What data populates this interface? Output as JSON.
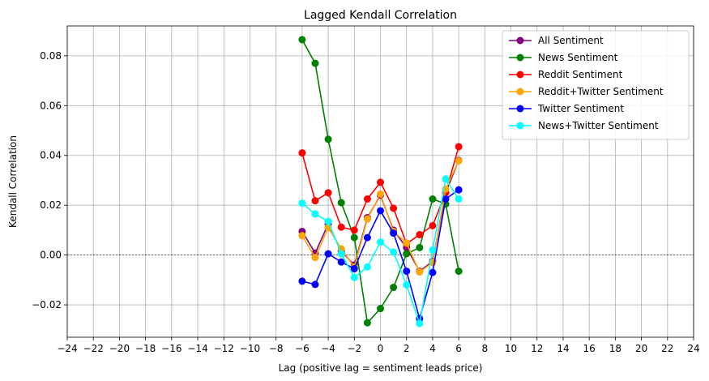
{
  "chart_data": {
    "type": "line",
    "title": "Lagged Kendall Correlation",
    "xlabel": "Lag (positive lag = sentiment leads price)",
    "ylabel": "Kendall Correlation",
    "xlim": [
      -24,
      24
    ],
    "ylim": [
      -0.033,
      0.092
    ],
    "xticks": [
      -24,
      -22,
      -20,
      -18,
      -16,
      -14,
      -12,
      -10,
      -8,
      -6,
      -4,
      -2,
      0,
      2,
      4,
      6,
      8,
      10,
      12,
      14,
      16,
      18,
      20,
      22,
      24
    ],
    "xtick_labels": [
      "−24",
      "−22",
      "−20",
      "−18",
      "−16",
      "−14",
      "−12",
      "−10",
      "−8",
      "−6",
      "−4",
      "−2",
      "0",
      "2",
      "4",
      "6",
      "8",
      "10",
      "12",
      "14",
      "16",
      "18",
      "20",
      "22",
      "24"
    ],
    "yticks": [
      -0.02,
      0.0,
      0.02,
      0.04,
      0.06,
      0.08
    ],
    "ytick_labels": [
      "−0.02",
      "0.00",
      "0.02",
      "0.04",
      "0.06",
      "0.08"
    ],
    "grid": true,
    "zero_line": true,
    "legend_position": "top-right",
    "x": [
      -6,
      -5,
      -4,
      -3,
      -2,
      -1,
      0,
      1,
      2,
      3,
      4,
      5,
      6
    ],
    "series": [
      {
        "name": "All Sentiment",
        "color": "#800080",
        "values": [
          0.0095,
          0.0008,
          0.0125,
          0.0015,
          -0.004,
          0.015,
          0.024,
          0.01,
          0.003,
          -0.0065,
          -0.0025,
          0.025,
          0.038
        ]
      },
      {
        "name": "News Sentiment",
        "color": "#008000",
        "values": [
          0.0865,
          0.077,
          0.0465,
          0.021,
          0.007,
          -0.0272,
          -0.0215,
          -0.013,
          0.0005,
          0.003,
          0.0225,
          0.0205,
          -0.0065
        ]
      },
      {
        "name": "Reddit Sentiment",
        "color": "#ff0000",
        "values": [
          0.041,
          0.0218,
          0.025,
          0.0112,
          0.01,
          0.0225,
          0.0292,
          0.0188,
          0.0045,
          0.0082,
          0.0118,
          0.025,
          0.0435
        ]
      },
      {
        "name": "Reddit+Twitter Sentiment",
        "color": "#ffa500",
        "values": [
          0.0078,
          -0.001,
          0.011,
          0.0025,
          -0.0048,
          0.0145,
          0.0245,
          0.0095,
          0.0048,
          -0.0068,
          -0.003,
          0.0265,
          0.0378
        ]
      },
      {
        "name": "Twitter Sentiment",
        "color": "#0000ff",
        "values": [
          -0.0105,
          -0.0118,
          0.0005,
          -0.0028,
          -0.0055,
          0.007,
          0.0178,
          0.0088,
          -0.0065,
          -0.0255,
          -0.007,
          0.0225,
          0.0262
        ]
      },
      {
        "name": "News+Twitter Sentiment",
        "color": "#00ffff",
        "values": [
          0.0208,
          0.0165,
          0.0135,
          0.0005,
          -0.009,
          -0.0048,
          0.0052,
          0.0012,
          -0.012,
          -0.0275,
          0.002,
          0.0305,
          0.0225
        ]
      }
    ]
  }
}
